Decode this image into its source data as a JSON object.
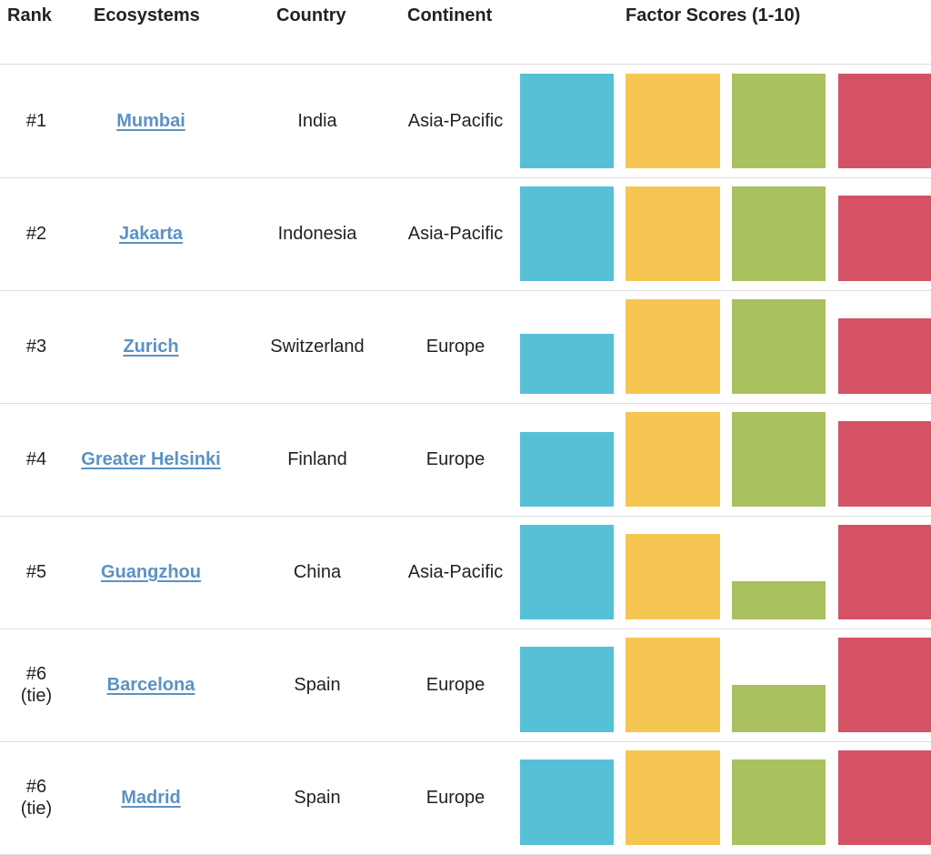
{
  "header": {
    "rank": "Rank",
    "ecosystems": "Ecosystems",
    "country": "Country",
    "continent": "Continent",
    "factor_scores": "Factor Scores (1-10)"
  },
  "colors": {
    "factor_1": "#56c1d6",
    "factor_2": "#f5c752",
    "factor_3": "#a9c15e",
    "factor_4": "#d45264",
    "link": "#5b92c4",
    "divider": "#dddddd"
  },
  "rows": [
    {
      "rank": "#1",
      "ecosystem": "Mumbai",
      "country": "India",
      "continent": "Asia-Pacific"
    },
    {
      "rank": "#2",
      "ecosystem": "Jakarta",
      "country": "Indonesia",
      "continent": "Asia-Pacific"
    },
    {
      "rank": "#3",
      "ecosystem": "Zurich",
      "country": "Switzerland",
      "continent": "Europe"
    },
    {
      "rank": "#4",
      "ecosystem": "Greater Helsinki",
      "country": "Finland",
      "continent": "Europe"
    },
    {
      "rank": "#5",
      "ecosystem": "Guangzhou",
      "country": "China",
      "continent": "Asia-Pacific"
    },
    {
      "rank": "#6\n(tie)",
      "ecosystem": "Barcelona",
      "country": "Spain",
      "continent": "Europe"
    },
    {
      "rank": "#6\n(tie)",
      "ecosystem": "Madrid",
      "country": "Spain",
      "continent": "Europe"
    }
  ],
  "chart_data": {
    "type": "bar",
    "title": "Factor Scores (1-10)",
    "ylim": [
      0,
      10
    ],
    "categories": [
      "Mumbai",
      "Jakarta",
      "Zurich",
      "Greater Helsinki",
      "Guangzhou",
      "Barcelona",
      "Madrid"
    ],
    "series": [
      {
        "color": "#56c1d6",
        "values": [
          10,
          10,
          6.3,
          7.9,
          10,
          9,
          9
        ]
      },
      {
        "color": "#f5c752",
        "values": [
          10,
          10,
          10,
          10,
          9,
          10,
          10
        ]
      },
      {
        "color": "#a9c15e",
        "values": [
          10,
          10,
          10,
          10,
          4,
          5,
          9
        ]
      },
      {
        "color": "#d45264",
        "values": [
          10,
          9,
          8,
          9,
          10,
          10,
          10
        ]
      }
    ]
  }
}
